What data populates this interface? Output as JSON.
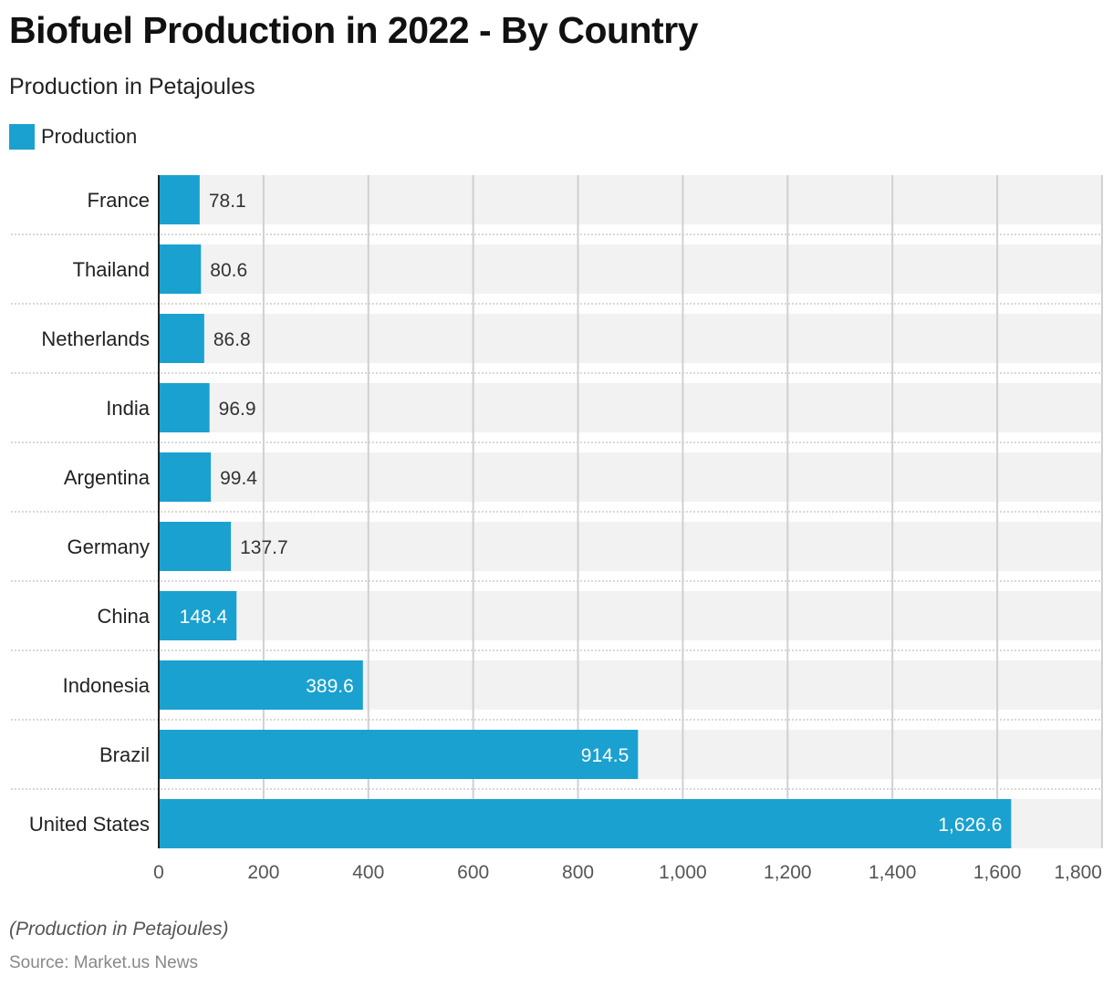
{
  "header": {
    "title": "Biofuel Production in 2022 - By Country",
    "subtitle": "Production in Petajoules"
  },
  "legend": {
    "label": "Production",
    "color": "#1aa1cf"
  },
  "footer": {
    "note": "(Production in Petajoules)",
    "source": "Source: Market.us News"
  },
  "chart_data": {
    "type": "bar",
    "orientation": "horizontal",
    "title": "Biofuel Production in 2022 - By Country",
    "subtitle": "Production in Petajoules",
    "xlabel": "",
    "ylabel": "",
    "categories": [
      "France",
      "Thailand",
      "Netherlands",
      "India",
      "Argentina",
      "Germany",
      "China",
      "Indonesia",
      "Brazil",
      "United States"
    ],
    "series": [
      {
        "name": "Production",
        "color": "#1aa1cf",
        "values": [
          78.1,
          80.6,
          86.8,
          96.9,
          99.4,
          137.7,
          148.4,
          389.6,
          914.5,
          1626.6
        ],
        "labels": [
          "78.1",
          "80.6",
          "86.8",
          "96.9",
          "99.4",
          "137.7",
          "148.4",
          "389.6",
          "914.5",
          "1,626.6"
        ]
      }
    ],
    "xlim": [
      0,
      1800
    ],
    "xticks": [
      0,
      200,
      400,
      600,
      800,
      1000,
      1200,
      1400,
      1600,
      1800
    ],
    "xtick_labels": [
      "0",
      "200",
      "400",
      "600",
      "800",
      "1,000",
      "1,200",
      "1,400",
      "1,600",
      "1,800"
    ],
    "grid": true,
    "legend_position": "top-left"
  }
}
